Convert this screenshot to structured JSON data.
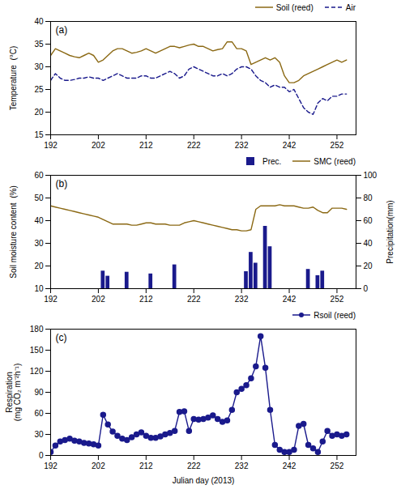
{
  "chart_data": [
    {
      "type": "line",
      "title": "(a)",
      "x": [
        192,
        193,
        194,
        195,
        196,
        197,
        198,
        199,
        200,
        201,
        202,
        203,
        204,
        205,
        206,
        207,
        208,
        209,
        210,
        211,
        212,
        213,
        214,
        215,
        216,
        217,
        218,
        219,
        220,
        221,
        222,
        223,
        224,
        225,
        226,
        227,
        228,
        229,
        230,
        231,
        232,
        233,
        234,
        235,
        236,
        237,
        238,
        239,
        240,
        241,
        242,
        243,
        244,
        245,
        246,
        247,
        248,
        249,
        250,
        251,
        252,
        253,
        254
      ],
      "series": [
        {
          "name": "Soil (reed)",
          "color": "#8B6914",
          "line_style": "solid",
          "values": [
            32.5,
            34.0,
            33.5,
            33.0,
            32.5,
            32.2,
            32.0,
            32.5,
            33.0,
            32.5,
            31.0,
            31.5,
            32.5,
            33.5,
            34.0,
            34.0,
            33.5,
            33.0,
            33.2,
            33.5,
            34.0,
            33.5,
            33.0,
            33.5,
            34.0,
            34.5,
            34.5,
            34.2,
            34.5,
            34.8,
            35.0,
            34.5,
            34.5,
            34.0,
            33.5,
            33.8,
            34.0,
            35.5,
            35.5,
            34.0,
            34.0,
            33.5,
            30.5,
            31.0,
            31.5,
            32.0,
            31.5,
            32.0,
            31.0,
            28.0,
            26.5,
            26.5,
            27.0,
            28.0,
            28.5,
            29.0,
            29.5,
            30.0,
            30.5,
            31.0,
            31.5,
            31.0,
            31.5
          ]
        },
        {
          "name": "Air",
          "color": "#1a1a8c",
          "line_style": "dashed",
          "values": [
            27.0,
            28.5,
            27.5,
            27.0,
            27.0,
            27.2,
            27.5,
            27.5,
            27.8,
            27.5,
            27.5,
            27.0,
            27.5,
            28.0,
            28.5,
            28.0,
            27.5,
            27.5,
            27.5,
            28.0,
            28.0,
            27.5,
            27.5,
            28.0,
            28.5,
            29.0,
            28.5,
            27.5,
            28.0,
            29.5,
            30.0,
            29.5,
            29.0,
            28.5,
            28.0,
            28.0,
            28.5,
            28.0,
            28.5,
            29.5,
            30.0,
            30.0,
            29.5,
            28.0,
            27.0,
            26.5,
            25.5,
            26.0,
            25.5,
            25.5,
            24.5,
            25.0,
            23.0,
            21.0,
            20.0,
            19.5,
            22.0,
            23.0,
            22.5,
            23.5,
            23.5,
            24.0,
            24.0
          ]
        }
      ],
      "ylabel": "Temperature  (°C)",
      "xlim": [
        192,
        256
      ],
      "xticks": [
        192,
        202,
        212,
        222,
        232,
        242,
        252
      ],
      "ylim": [
        15,
        40
      ],
      "yticks": [
        15,
        20,
        25,
        30,
        35,
        40
      ],
      "legend": "upper right",
      "grid": false
    },
    {
      "type": "line",
      "title": "(b)",
      "series": [
        {
          "name": "Prec.",
          "type": "bar",
          "axis": "y2",
          "color": "#1a1a8c",
          "x": [
            203,
            204,
            208,
            209,
            213,
            217,
            218,
            233,
            234,
            235,
            236,
            237,
            238,
            241,
            246,
            248,
            249
          ],
          "values": [
            15.5,
            11.0,
            14.5,
            0,
            13.0,
            0,
            21.0,
            15.0,
            32.0,
            22.5,
            0,
            55.0,
            37.0,
            0,
            17.0,
            11.5,
            15.5
          ]
        },
        {
          "name": "SMC (reed)",
          "type": "line",
          "color": "#8B6914",
          "line_style": "solid",
          "x": [
            192,
            193,
            194,
            195,
            196,
            197,
            198,
            199,
            200,
            201,
            202,
            203,
            204,
            205,
            206,
            207,
            208,
            209,
            210,
            211,
            212,
            213,
            214,
            215,
            216,
            217,
            218,
            219,
            220,
            221,
            222,
            223,
            224,
            225,
            226,
            227,
            228,
            229,
            230,
            231,
            232,
            233,
            234,
            235,
            236,
            237,
            238,
            239,
            240,
            241,
            242,
            243,
            244,
            245,
            246,
            247,
            248,
            249,
            250,
            251,
            252,
            253,
            254
          ],
          "values": [
            46.5,
            46.0,
            45.5,
            45.0,
            44.5,
            44.0,
            43.5,
            43.0,
            42.5,
            42.0,
            41.5,
            40.5,
            39.5,
            38.5,
            38.5,
            38.5,
            38.5,
            38.0,
            38.0,
            38.5,
            39.0,
            39.0,
            38.5,
            38.5,
            38.5,
            38.0,
            38.0,
            38.0,
            39.0,
            39.5,
            40.0,
            39.5,
            39.0,
            38.5,
            38.0,
            37.5,
            37.0,
            36.5,
            36.0,
            36.0,
            35.5,
            35.5,
            36.0,
            45.0,
            46.5,
            46.5,
            46.5,
            46.5,
            47.0,
            46.5,
            46.5,
            46.5,
            46.0,
            45.5,
            45.5,
            46.0,
            44.5,
            43.5,
            43.5,
            45.5,
            45.5,
            45.5,
            45.0
          ]
        }
      ],
      "ylabel": "Soil moisture content  (%)",
      "y2label": "Precipitation(mm)",
      "xlim": [
        192,
        256
      ],
      "xticks": [
        192,
        202,
        212,
        222,
        232,
        242,
        252
      ],
      "ylim": [
        10,
        60
      ],
      "yticks": [
        10,
        20,
        30,
        40,
        50,
        60
      ],
      "y2lim": [
        0,
        100
      ],
      "y2ticks": [
        0,
        20,
        40,
        60,
        80,
        100
      ],
      "legend": "upper right",
      "grid": false
    },
    {
      "type": "line",
      "title": "(c)",
      "x": [
        192,
        193,
        194,
        195,
        196,
        197,
        198,
        199,
        200,
        201,
        202,
        203,
        204,
        205,
        206,
        207,
        208,
        209,
        210,
        211,
        212,
        213,
        214,
        215,
        216,
        217,
        218,
        219,
        220,
        221,
        222,
        223,
        224,
        225,
        226,
        227,
        228,
        229,
        230,
        231,
        232,
        233,
        234,
        235,
        236,
        237,
        238,
        239,
        240,
        241,
        242,
        243,
        244,
        245,
        246,
        247,
        248,
        249,
        250,
        251,
        252,
        253,
        254
      ],
      "series": [
        {
          "name": "Rsoil (reed)",
          "color": "#1a1a8c",
          "line_style": "solid",
          "marker": "circle",
          "values": [
            5.0,
            14.0,
            20.0,
            22.0,
            24.0,
            21.0,
            20.0,
            18.0,
            17.0,
            16.0,
            14.0,
            58.0,
            44.0,
            34.0,
            28.0,
            24.0,
            22.0,
            26.0,
            30.0,
            33.0,
            28.0,
            25.0,
            25.0,
            27.0,
            30.0,
            32.0,
            35.0,
            62.0,
            63.0,
            35.0,
            52.0,
            51.0,
            52.0,
            54.0,
            57.0,
            52.0,
            48.0,
            50.0,
            65.0,
            90.0,
            95.0,
            100.0,
            110.0,
            127.0,
            170.0,
            125.0,
            65.0,
            15.0,
            8.0,
            5.0,
            5.0,
            8.0,
            42.0,
            45.0,
            15.0,
            10.0,
            5.0,
            20.0,
            35.0,
            28.0,
            30.0,
            28.0,
            30.0
          ]
        }
      ],
      "ylabel": "Respiration\n(mg CO₂ m⁻²h⁻¹)",
      "xlabel": "Julian day (2013)",
      "xlim": [
        192,
        256
      ],
      "xticks": [
        192,
        202,
        212,
        222,
        232,
        242,
        252
      ],
      "ylim": [
        0,
        180
      ],
      "yticks": [
        0,
        30,
        60,
        90,
        120,
        150,
        180
      ],
      "legend": "upper right",
      "grid": false
    }
  ]
}
